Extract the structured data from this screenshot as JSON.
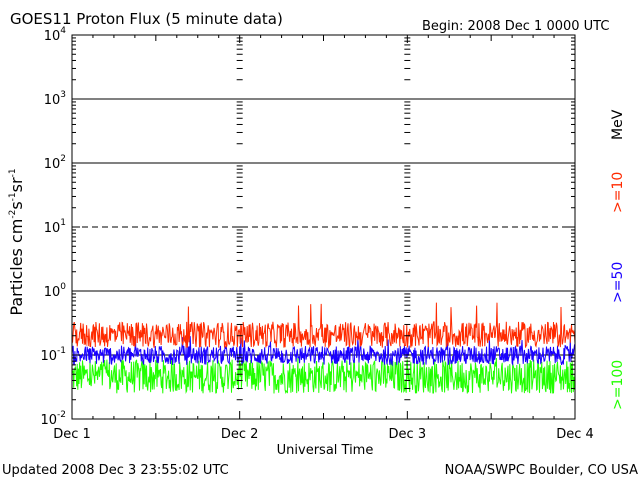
{
  "chart_data": {
    "type": "line",
    "title": "GOES11 Proton Flux (5 minute data)",
    "begin_label": "Begin: 2008 Dec 1 0000 UTC",
    "xlabel": "Universal Time",
    "ylabel": {
      "base": "Particles cm",
      "exp1": "-2",
      "s": "s",
      "exp2": "-1",
      "sr": "sr",
      "exp3": "-1"
    },
    "y_scale": "log",
    "ylim": [
      0.01,
      10000
    ],
    "y_ticks": [
      {
        "value": 10000,
        "base": "10",
        "exp": "4"
      },
      {
        "value": 1000,
        "base": "10",
        "exp": "3"
      },
      {
        "value": 100,
        "base": "10",
        "exp": "2"
      },
      {
        "value": 10,
        "base": "10",
        "exp": "1"
      },
      {
        "value": 1,
        "base": "10",
        "exp": "0"
      },
      {
        "value": 0.1,
        "base": "10",
        "exp": "-1"
      },
      {
        "value": 0.01,
        "base": "10",
        "exp": "-2"
      }
    ],
    "threshold_lines": [
      {
        "value": 1000,
        "style": "solid"
      },
      {
        "value": 100,
        "style": "solid"
      },
      {
        "value": 10,
        "style": "dashed"
      },
      {
        "value": 1,
        "style": "solid"
      },
      {
        "value": 0.1,
        "style": "solid"
      }
    ],
    "x_ticks": [
      "Dec 1",
      "Dec 2",
      "Dec 3",
      "Dec 4"
    ],
    "xlim_days": [
      0,
      3
    ],
    "series": [
      {
        "name": ">=10",
        "color": "#ff2a00",
        "typical": 0.2,
        "low": 0.13,
        "high": 0.33,
        "peak": 0.7
      },
      {
        "name": ">=50",
        "color": "#1a00ff",
        "typical": 0.1,
        "low": 0.07,
        "high": 0.14,
        "peak": 0.2
      },
      {
        "name": ">=100",
        "color": "#22ff00",
        "typical": 0.045,
        "low": 0.025,
        "high": 0.085,
        "peak": 0.09
      }
    ],
    "legend_unit": "MeV",
    "legend_position": "right"
  },
  "footer": {
    "updated": "Updated 2008 Dec  3 23:55:02 UTC",
    "source": "NOAA/SWPC Boulder, CO USA"
  }
}
